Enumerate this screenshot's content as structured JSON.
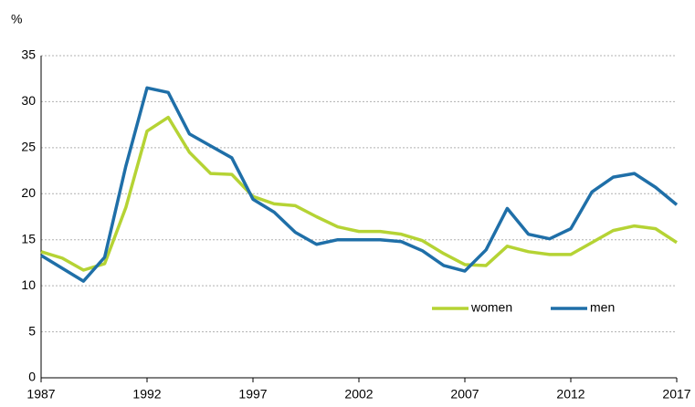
{
  "chart_data": {
    "type": "line",
    "y_label": "%",
    "x": [
      1987,
      1988,
      1989,
      1990,
      1991,
      1992,
      1993,
      1994,
      1995,
      1996,
      1997,
      1998,
      1999,
      2000,
      2001,
      2002,
      2003,
      2004,
      2005,
      2006,
      2007,
      2008,
      2009,
      2010,
      2011,
      2012,
      2013,
      2014,
      2015,
      2016,
      2017
    ],
    "series": [
      {
        "name": "women",
        "color": "#b5d334",
        "values": [
          13.7,
          13.0,
          11.7,
          12.4,
          18.5,
          26.8,
          28.3,
          24.5,
          22.2,
          22.1,
          19.7,
          18.9,
          18.7,
          17.5,
          16.4,
          15.9,
          15.9,
          15.6,
          14.9,
          13.5,
          12.3,
          12.2,
          14.3,
          13.7,
          13.4,
          13.4,
          14.7,
          16.0,
          16.5,
          16.2,
          14.7
        ]
      },
      {
        "name": "men",
        "color": "#1f6fa8",
        "values": [
          13.3,
          11.9,
          10.5,
          13.1,
          23.0,
          31.5,
          31.0,
          26.5,
          25.2,
          23.9,
          19.4,
          18.0,
          15.8,
          14.5,
          15.0,
          15.0,
          15.0,
          14.8,
          13.8,
          12.2,
          11.6,
          13.9,
          18.4,
          15.6,
          15.1,
          16.2,
          20.2,
          21.8,
          22.2,
          20.7,
          18.8
        ]
      }
    ],
    "xlim": [
      1987,
      2017
    ],
    "xticks": [
      1987,
      1992,
      1997,
      2002,
      2007,
      2012,
      2017
    ],
    "ylim": [
      0,
      35
    ],
    "yticks": [
      0,
      5,
      10,
      15,
      20,
      25,
      30,
      35
    ],
    "grid": true,
    "legend": "lower right"
  }
}
